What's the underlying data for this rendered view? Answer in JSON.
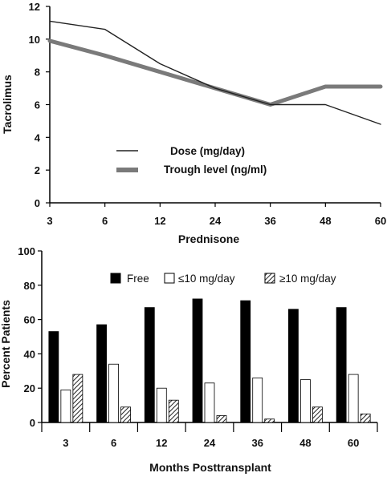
{
  "chart_data": [
    {
      "type": "line",
      "title": "",
      "ylabel": "Tacrolimus",
      "xlabel": "",
      "x": [
        "3",
        "6",
        "12",
        "24",
        "36",
        "48",
        "60"
      ],
      "ylim": [
        0,
        12
      ],
      "yticks": [
        "0",
        "2",
        "4",
        "6",
        "8",
        "10",
        "12"
      ],
      "grid": false,
      "legend_position": "lower-left",
      "series": [
        {
          "name": "Dose (mg/day)",
          "color": "#222222",
          "style": "thin solid",
          "values": [
            11.1,
            10.6,
            8.5,
            7.0,
            6.0,
            6.0,
            4.8
          ]
        },
        {
          "name": "Trough level (ng/ml)",
          "color": "#7a7a7a",
          "style": "thick gray",
          "values": [
            9.9,
            9.0,
            8.0,
            7.0,
            6.0,
            7.1,
            7.1
          ]
        }
      ]
    },
    {
      "type": "bar",
      "title": "Prednisone",
      "ylabel": "Percent Patients",
      "xlabel": "Months Posttransplant",
      "categories": [
        "3",
        "6",
        "12",
        "24",
        "36",
        "48",
        "60"
      ],
      "ylim": [
        0,
        100
      ],
      "yticks": [
        "0",
        "20",
        "40",
        "60",
        "80",
        "100"
      ],
      "grid": false,
      "legend_position": "top",
      "series": [
        {
          "name": "Free",
          "fill": "black",
          "values": [
            53,
            57,
            67,
            72,
            71,
            66,
            67
          ]
        },
        {
          "name": "≤10 mg/day",
          "fill": "white",
          "values": [
            19,
            34,
            20,
            23,
            26,
            25,
            28
          ]
        },
        {
          "name": "≥10 mg/day",
          "fill": "hatched",
          "values": [
            28,
            9,
            13,
            4,
            2,
            9,
            5
          ]
        }
      ]
    }
  ]
}
